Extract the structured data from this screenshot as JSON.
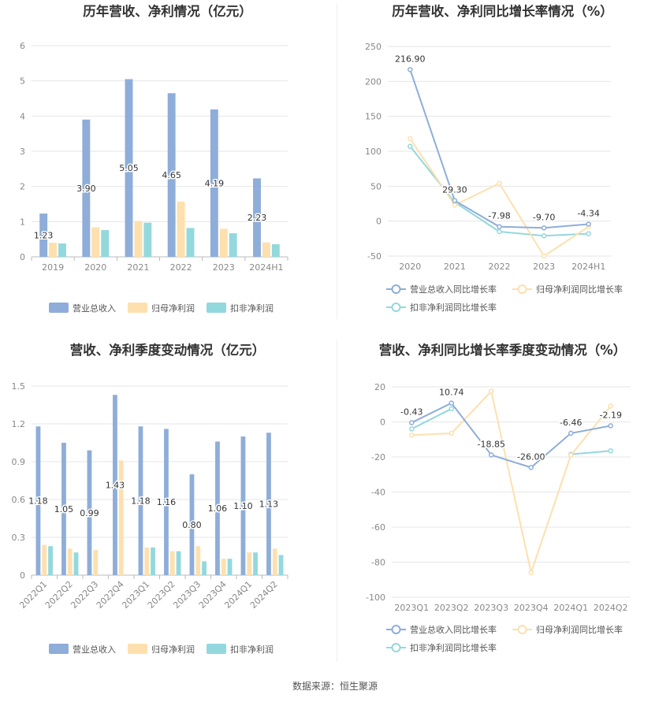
{
  "colors": {
    "revenue": "#8eadd9",
    "net_profit": "#fde0ae",
    "deducted": "#93d8dd",
    "grid": "#e6e6e6",
    "axis": "#bbbbbb"
  },
  "source": "数据来源：恒生聚源",
  "chart_data": [
    {
      "type": "bar",
      "title": "历年营收、净利情况（亿元）",
      "categories": [
        "2019",
        "2020",
        "2021",
        "2022",
        "2023",
        "2024H1"
      ],
      "ylim": [
        0,
        6
      ],
      "yticks": [
        0,
        1,
        2,
        3,
        4,
        5,
        6
      ],
      "label_series": 0,
      "label_decimals": 2,
      "x_rotate": false,
      "series": [
        {
          "name": "营业总收入",
          "values": [
            1.23,
            3.9,
            5.05,
            4.65,
            4.19,
            2.23
          ]
        },
        {
          "name": "归母净利润",
          "values": [
            0.4,
            0.84,
            1.02,
            1.57,
            0.8,
            0.41
          ]
        },
        {
          "name": "扣非净利润",
          "values": [
            0.38,
            0.76,
            0.97,
            0.82,
            0.67,
            0.36
          ]
        }
      ],
      "grid": true,
      "legend": "bottom"
    },
    {
      "type": "line",
      "title": "历年营收、净利同比增长率情况（%）",
      "categories": [
        "2020",
        "2021",
        "2022",
        "2023",
        "2024H1"
      ],
      "ylim": [
        -50,
        250
      ],
      "yticks": [
        -50,
        0,
        50,
        100,
        150,
        200,
        250
      ],
      "label_series": 0,
      "label_decimals": 2,
      "series": [
        {
          "name": "营业总收入同比增长率",
          "values": [
            216.9,
            29.3,
            -7.98,
            -9.7,
            -4.34
          ]
        },
        {
          "name": "归母净利润同比增长率",
          "values": [
            118,
            23,
            54,
            -50,
            -8
          ]
        },
        {
          "name": "扣非净利润同比增长率",
          "values": [
            107,
            27,
            -15,
            -21,
            -18
          ]
        }
      ],
      "grid": true,
      "legend": "bottom"
    },
    {
      "type": "bar",
      "title": "营收、净利季度变动情况（亿元）",
      "categories": [
        "2022Q1",
        "2022Q2",
        "2022Q3",
        "2022Q4",
        "2023Q1",
        "2023Q2",
        "2023Q3",
        "2023Q4",
        "2024Q1",
        "2024Q2"
      ],
      "ylim": [
        0,
        1.5
      ],
      "yticks": [
        0,
        0.3,
        0.6,
        0.9,
        1.2,
        1.5
      ],
      "label_series": 0,
      "label_decimals": 2,
      "x_rotate": true,
      "series": [
        {
          "name": "营业总收入",
          "values": [
            1.18,
            1.05,
            0.99,
            1.43,
            1.18,
            1.16,
            0.8,
            1.06,
            1.1,
            1.13
          ]
        },
        {
          "name": "归母净利润",
          "values": [
            0.24,
            0.21,
            0.2,
            0.91,
            0.22,
            0.19,
            0.23,
            0.13,
            0.18,
            0.21
          ]
        },
        {
          "name": "扣非净利润",
          "values": [
            0.23,
            0.18,
            null,
            null,
            0.22,
            0.19,
            0.11,
            0.13,
            0.18,
            0.16
          ]
        }
      ],
      "grid": true,
      "legend": "bottom"
    },
    {
      "type": "line",
      "title": "营收、净利同比增长率季度变动情况（%）",
      "categories": [
        "2023Q1",
        "2023Q2",
        "2023Q3",
        "2023Q4",
        "2024Q1",
        "2024Q2"
      ],
      "ylim": [
        -100,
        20
      ],
      "yticks": [
        -100,
        -80,
        -60,
        -40,
        -20,
        0,
        20
      ],
      "label_series": 0,
      "label_decimals": 2,
      "series": [
        {
          "name": "营业总收入同比增长率",
          "values": [
            -0.43,
            10.74,
            -18.85,
            -26.0,
            -6.46,
            -2.19
          ]
        },
        {
          "name": "归母净利润同比增长率",
          "values": [
            -7.5,
            -6.5,
            17.5,
            -86,
            -19,
            9
          ]
        },
        {
          "name": "扣非净利润同比增长率",
          "values": [
            -4,
            7.5,
            null,
            null,
            -18.5,
            -16.5
          ]
        }
      ],
      "grid": true,
      "legend": "bottom"
    }
  ]
}
